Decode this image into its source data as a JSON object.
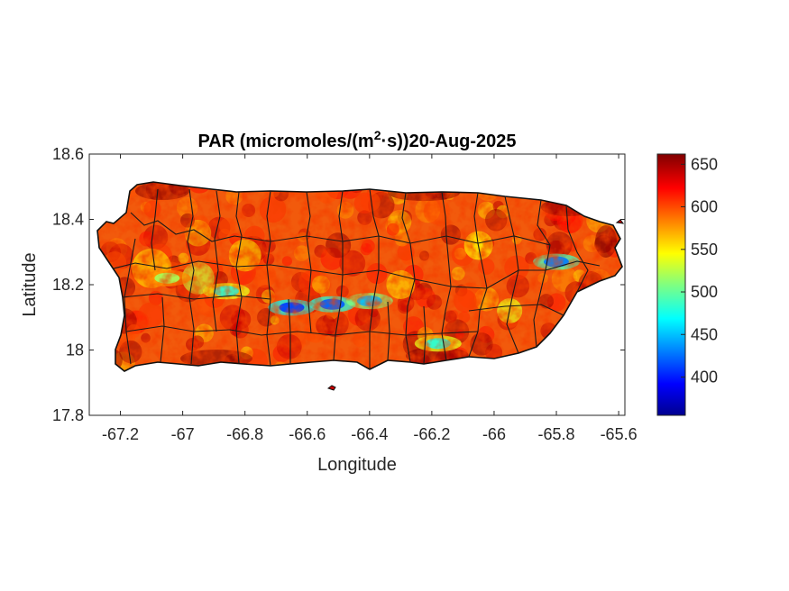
{
  "chart_data": {
    "type": "heatmap",
    "title_prefix": "PAR (micromoles/(m",
    "title_sup": "2",
    "title_suffix": "·s))20-Aug-2025",
    "xlabel": "Longitude",
    "ylabel": "Latitude",
    "xlim": [
      -67.3,
      -65.58
    ],
    "ylim": [
      17.8,
      18.6
    ],
    "xticks": [
      "-67.2",
      "-67",
      "-66.8",
      "-66.6",
      "-66.4",
      "-66.2",
      "-66",
      "-65.8",
      "-65.6"
    ],
    "xtick_values": [
      -67.2,
      -67.0,
      -66.8,
      -66.6,
      -66.4,
      -66.2,
      -66.0,
      -65.8,
      -65.6
    ],
    "yticks": [
      "17.8",
      "18",
      "18.2",
      "18.4",
      "18.6"
    ],
    "ytick_values": [
      17.8,
      18.0,
      18.2,
      18.4,
      18.6
    ],
    "colorbar": {
      "colormap": "jet",
      "clim": [
        355,
        662
      ],
      "ticks": [
        "400",
        "450",
        "500",
        "550",
        "600",
        "650"
      ],
      "tick_values": [
        400,
        450,
        500,
        550,
        600,
        650
      ]
    },
    "grid": false,
    "region": "Puerto Rico with municipality boundaries",
    "low_zones": [
      {
        "lon": -66.65,
        "lat": 18.13,
        "value": 410
      },
      {
        "lon": -66.52,
        "lat": 18.14,
        "value": 420
      },
      {
        "lon": -66.4,
        "lat": 18.15,
        "value": 450
      },
      {
        "lon": -66.86,
        "lat": 18.18,
        "value": 480
      },
      {
        "lon": -67.05,
        "lat": 18.22,
        "value": 520
      },
      {
        "lon": -65.8,
        "lat": 18.27,
        "value": 430
      },
      {
        "lon": -66.18,
        "lat": 18.02,
        "value": 480
      }
    ]
  }
}
